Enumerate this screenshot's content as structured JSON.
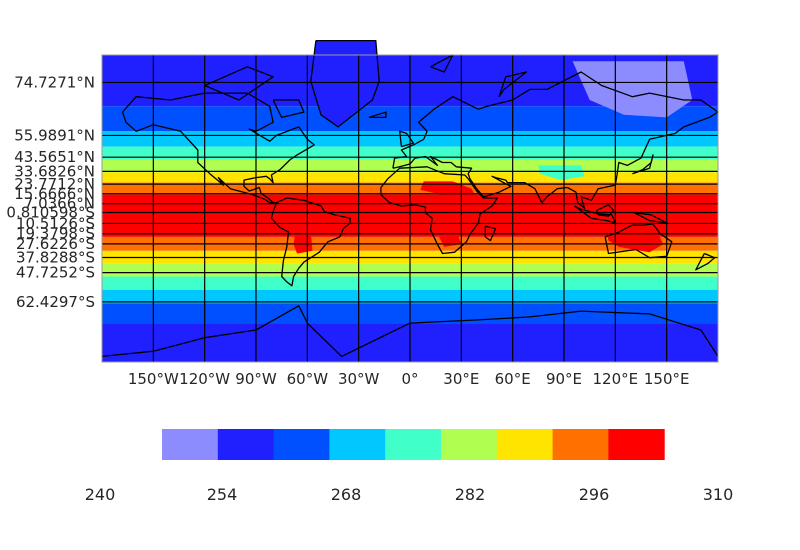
{
  "chart_data": {
    "type": "heatmap",
    "map_projection": "mercator",
    "lat_range": [
      "79°S",
      "80°N"
    ],
    "lon_range": [
      "180°W",
      "180°E"
    ],
    "latitude_labels": [
      "74.7271°N",
      "55.9891°N",
      "43.5651°N",
      "33.6826°N",
      "23.7712°N",
      "15.6666°N",
      "7.0366°N",
      "0.810598°S",
      "10.5126°S",
      "19.3798°S",
      "27.6226°S",
      "37.8288°S",
      "47.7252°S",
      "62.4297°S"
    ],
    "latitude_values": [
      74.7271,
      55.9891,
      43.5651,
      33.6826,
      23.7712,
      15.6666,
      7.0366,
      -0.810598,
      -10.5126,
      -19.3798,
      -27.6226,
      -37.8288,
      -47.7252,
      -62.4297
    ],
    "longitude_labels": [
      "150°W",
      "120°W",
      "90°W",
      "60°W",
      "30°W",
      "0°",
      "30°E",
      "60°E",
      "90°E",
      "120°E",
      "150°E"
    ],
    "longitude_values": [
      -150,
      -120,
      -90,
      -60,
      -30,
      0,
      30,
      60,
      90,
      120,
      150
    ],
    "colorbar": {
      "levels": [
        240,
        247,
        254,
        261,
        268,
        275,
        282,
        289,
        296,
        303,
        310
      ],
      "tick_labels": [
        "240",
        "254",
        "268",
        "282",
        "296",
        "310"
      ],
      "colors": [
        "#8c8cff",
        "#2020ff",
        "#0050ff",
        "#00c8ff",
        "#40ffc8",
        "#b0ff50",
        "#ffe400",
        "#ff7000",
        "#ff0000"
      ]
    },
    "field_bands": [
      {
        "lat_from": 80,
        "lat_to": 68,
        "value": 251
      },
      {
        "lat_from": 68,
        "lat_to": 58,
        "value": 257
      },
      {
        "lat_from": 58,
        "lat_to": 50,
        "value": 264
      },
      {
        "lat_from": 50,
        "lat_to": 42,
        "value": 271
      },
      {
        "lat_from": 42,
        "lat_to": 33,
        "value": 278
      },
      {
        "lat_from": 33,
        "lat_to": 25,
        "value": 285
      },
      {
        "lat_from": 25,
        "lat_to": 15,
        "value": 292
      },
      {
        "lat_from": 15,
        "lat_to": -22,
        "value": 299
      },
      {
        "lat_from": -22,
        "lat_to": -33,
        "value": 292
      },
      {
        "lat_from": -33,
        "lat_to": -42,
        "value": 285
      },
      {
        "lat_from": -42,
        "lat_to": -50,
        "value": 278
      },
      {
        "lat_from": -50,
        "lat_to": -57,
        "value": 271
      },
      {
        "lat_from": -57,
        "lat_to": -63,
        "value": 264
      },
      {
        "lat_from": -63,
        "lat_to": -70,
        "value": 257
      },
      {
        "lat_from": -70,
        "lat_to": -79,
        "value": 251
      }
    ],
    "anomalies": [
      {
        "region": "greenland",
        "value": 251
      },
      {
        "region": "tibet",
        "value": 271
      },
      {
        "region": "sahara",
        "value": 303
      },
      {
        "region": "kalahari",
        "value": 303
      },
      {
        "region": "gran-chaco",
        "value": 303
      },
      {
        "region": "australia-interior",
        "value": 303
      },
      {
        "region": "siberia-cold",
        "value": 240
      }
    ]
  }
}
